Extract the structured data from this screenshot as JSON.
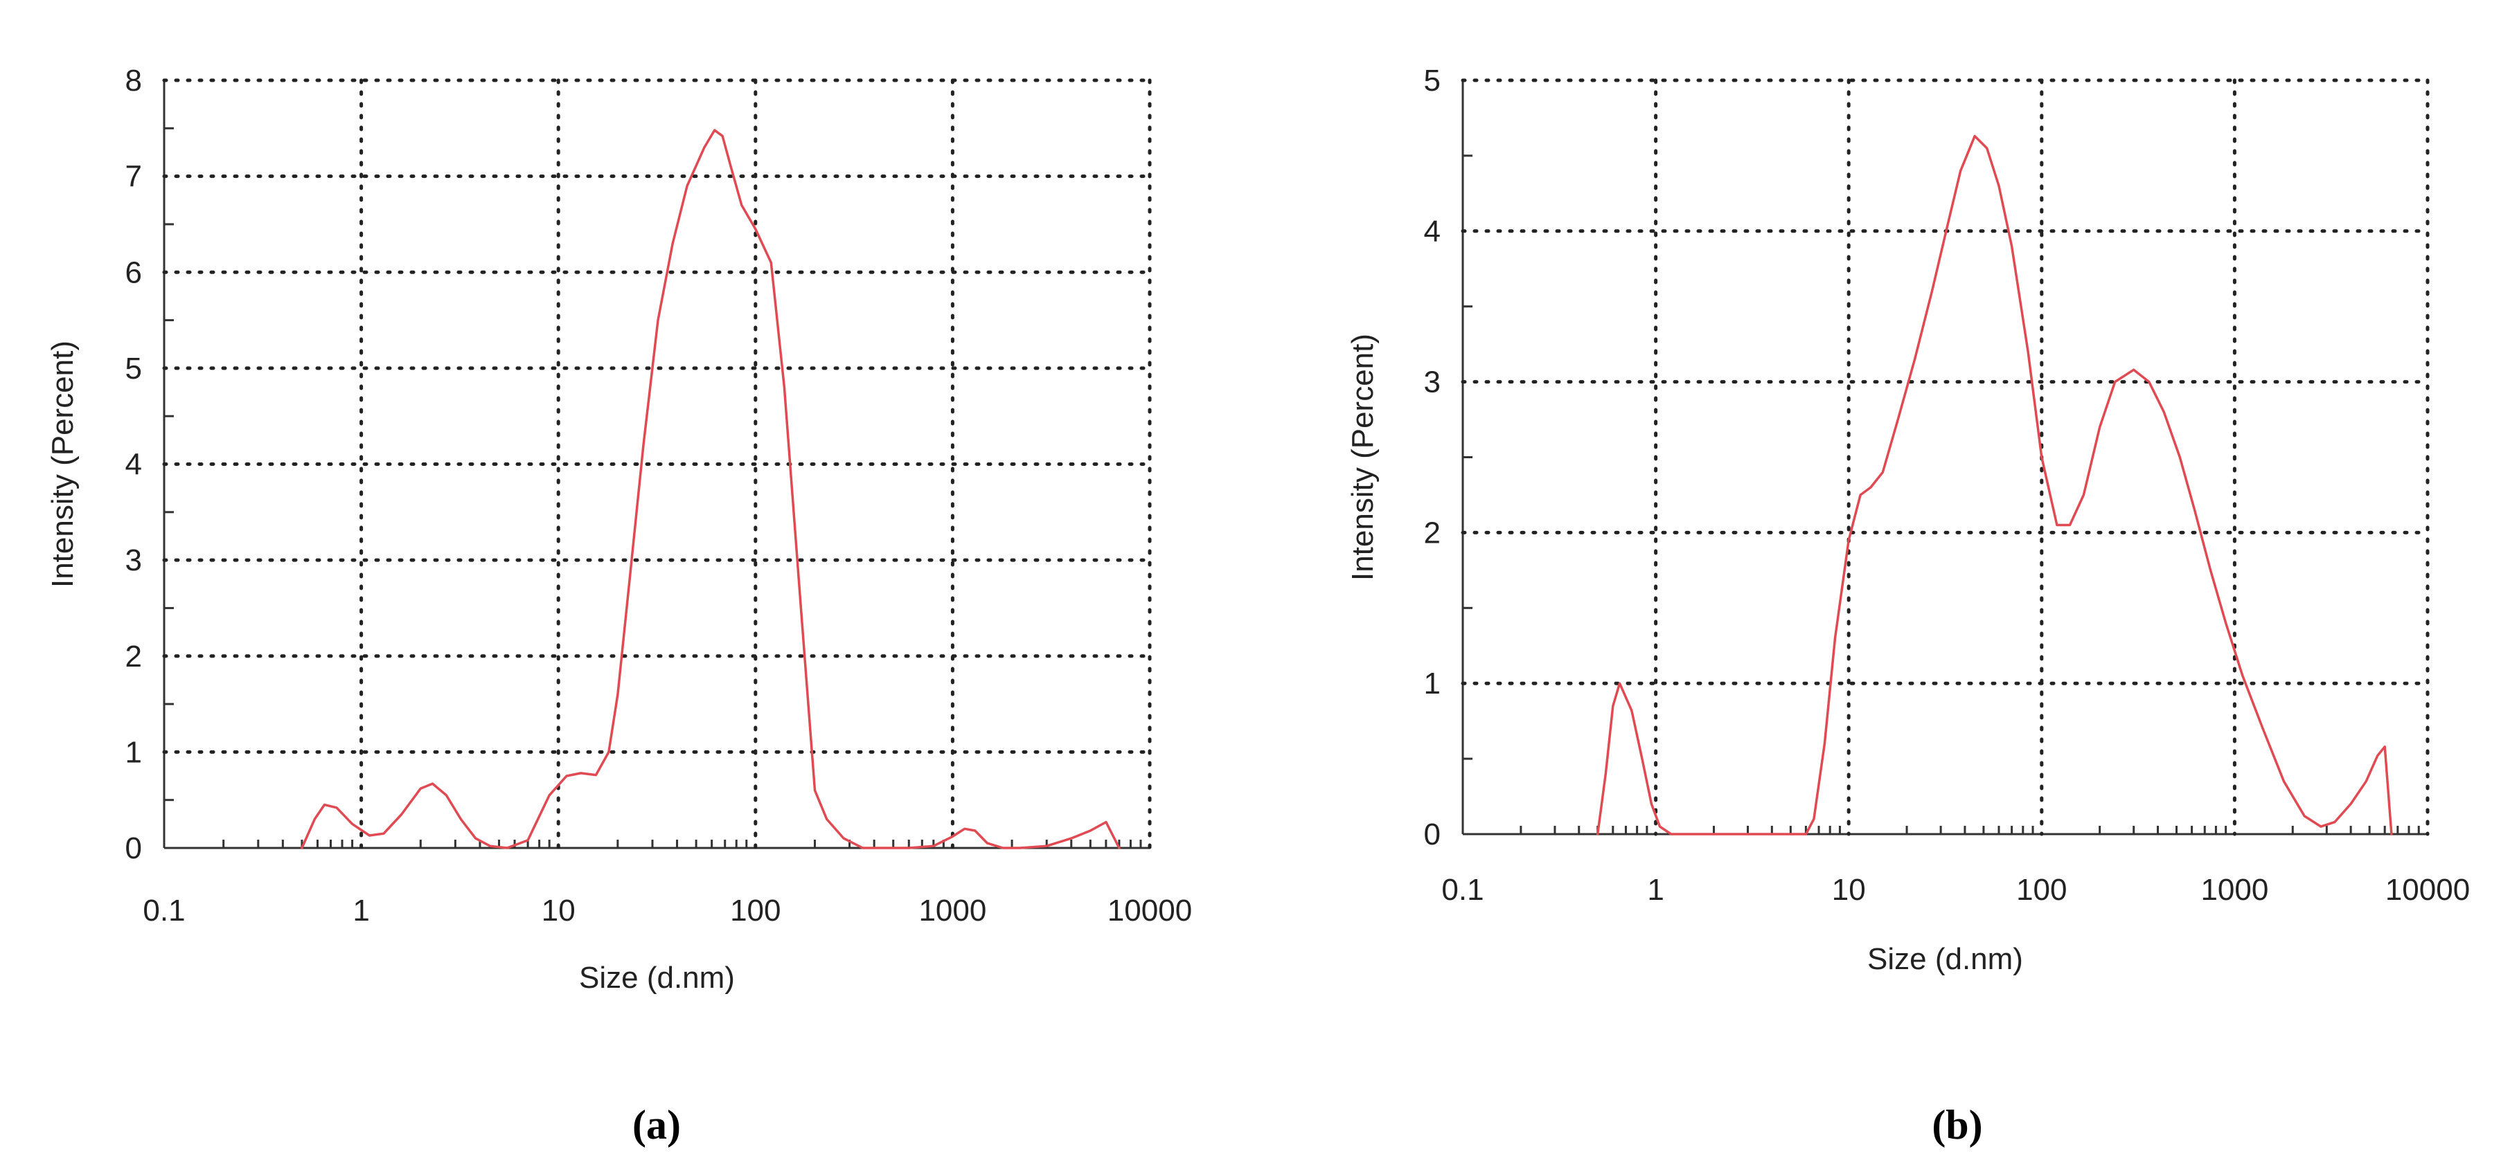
{
  "chart_data": [
    {
      "type": "line",
      "panel_label": "(a)",
      "title": "",
      "xlabel": "Size (d.nm)",
      "ylabel": "Intensity (Percent)",
      "xscale": "log",
      "xlim": [
        0.1,
        10000
      ],
      "ylim": [
        0,
        8
      ],
      "xticks": [
        0.1,
        1,
        10,
        100,
        1000,
        10000
      ],
      "xtick_labels": [
        "0.1",
        "1",
        "10",
        "100",
        "1000",
        "10000"
      ],
      "yticks": [
        0,
        1,
        2,
        3,
        4,
        5,
        6,
        7,
        8
      ],
      "ytick_labels": [
        "0",
        "1",
        "2",
        "3",
        "4",
        "5",
        "6",
        "7",
        "8"
      ],
      "grid": true,
      "legend": "none",
      "line_color": "#e04a52",
      "series": [
        {
          "x": [
            0.5,
            0.58,
            0.65,
            0.75,
            0.9,
            1.1,
            1.3,
            1.6,
            2.0,
            2.3,
            2.7,
            3.2,
            3.8,
            4.5,
            5.5,
            7.0,
            9.0,
            11.0,
            13.0,
            15.5,
            18.0,
            20.0,
            23.0,
            27.0,
            32.0,
            38.0,
            45.0,
            55.0,
            62.0,
            68.0,
            75.0,
            85.0,
            100.0,
            120.0,
            140.0,
            170.0,
            200.0,
            230.0,
            280.0,
            350.0,
            450.0,
            600.0,
            800.0,
            1000.0,
            1150.0,
            1300.0,
            1500.0,
            1800.0,
            2200.0,
            3000.0,
            4000.0,
            5000.0,
            6000.0,
            7000.0
          ],
          "y": [
            0.0,
            0.3,
            0.45,
            0.42,
            0.25,
            0.13,
            0.15,
            0.35,
            0.62,
            0.67,
            0.55,
            0.3,
            0.1,
            0.02,
            0.0,
            0.08,
            0.55,
            0.75,
            0.78,
            0.76,
            1.0,
            1.6,
            2.8,
            4.2,
            5.5,
            6.3,
            6.9,
            7.3,
            7.48,
            7.42,
            7.1,
            6.7,
            6.45,
            6.1,
            4.8,
            2.5,
            0.6,
            0.3,
            0.1,
            0.0,
            0.0,
            0.0,
            0.02,
            0.12,
            0.2,
            0.18,
            0.05,
            0.0,
            0.0,
            0.02,
            0.1,
            0.18,
            0.27,
            0.0
          ]
        }
      ]
    },
    {
      "type": "line",
      "panel_label": "(b)",
      "title": "",
      "xlabel": "Size (d.nm)",
      "ylabel": "Intensity (Percent)",
      "xscale": "log",
      "xlim": [
        0.1,
        10000
      ],
      "ylim": [
        0,
        5
      ],
      "xticks": [
        0.1,
        1,
        10,
        100,
        1000,
        10000
      ],
      "xtick_labels": [
        "0.1",
        "1",
        "10",
        "100",
        "1000",
        "10000"
      ],
      "yticks": [
        0,
        1,
        2,
        3,
        4,
        5
      ],
      "ytick_labels": [
        "0",
        "1",
        "2",
        "3",
        "4",
        "5"
      ],
      "grid": true,
      "legend": "none",
      "line_color": "#e04a52",
      "series": [
        {
          "x": [
            0.5,
            0.55,
            0.6,
            0.65,
            0.75,
            0.85,
            0.95,
            1.05,
            1.2,
            2.0,
            4.0,
            6.0,
            6.6,
            7.5,
            8.5,
            10.0,
            11.5,
            13.0,
            15.0,
            18.0,
            22.0,
            27.0,
            32.0,
            38.0,
            45.0,
            52.0,
            60.0,
            70.0,
            85.0,
            100.0,
            120.0,
            140.0,
            165.0,
            200.0,
            240.0,
            300.0,
            360.0,
            430.0,
            520.0,
            620.0,
            750.0,
            900.0,
            1100.0,
            1400.0,
            1800.0,
            2300.0,
            2800.0,
            3300.0,
            4000.0,
            4800.0,
            5500.0,
            6000.0,
            6500.0
          ],
          "y": [
            0.0,
            0.4,
            0.85,
            1.0,
            0.82,
            0.5,
            0.2,
            0.05,
            0.0,
            0.0,
            0.0,
            0.0,
            0.1,
            0.6,
            1.3,
            1.95,
            2.25,
            2.3,
            2.4,
            2.75,
            3.15,
            3.6,
            4.0,
            4.4,
            4.63,
            4.55,
            4.3,
            3.9,
            3.2,
            2.5,
            2.05,
            2.05,
            2.25,
            2.7,
            3.0,
            3.08,
            3.0,
            2.8,
            2.5,
            2.15,
            1.75,
            1.4,
            1.05,
            0.7,
            0.35,
            0.12,
            0.05,
            0.08,
            0.2,
            0.35,
            0.52,
            0.58,
            0.0
          ]
        }
      ]
    }
  ]
}
